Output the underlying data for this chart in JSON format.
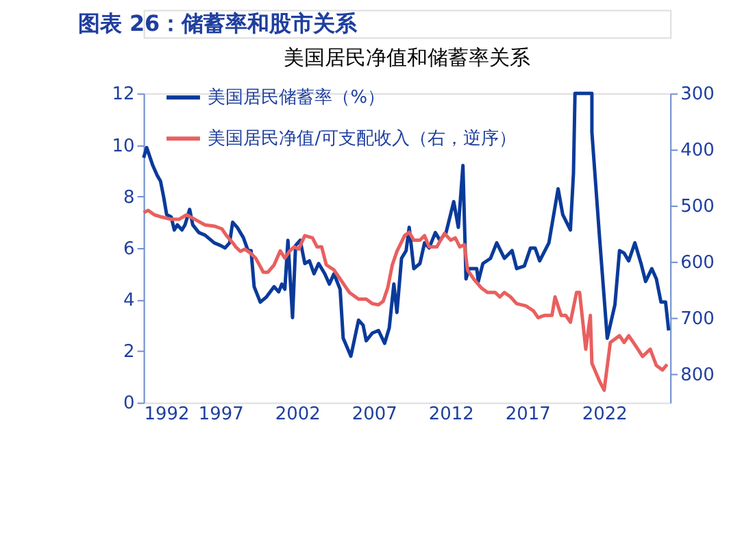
{
  "chart_data": {
    "type": "line",
    "title": "图表 26：储蓄率和股市关系",
    "subtitle": "美国居民净值和储蓄率关系",
    "xlim": [
      1992,
      2026.3
    ],
    "xticks": [
      1992,
      1997,
      2002,
      2007,
      2012,
      2017,
      2022
    ],
    "ylim": [
      0,
      12
    ],
    "yticks": [
      0,
      2,
      4,
      6,
      8,
      10,
      12
    ],
    "y2lim": [
      850,
      300
    ],
    "y2ticks": [
      300,
      400,
      500,
      600,
      700,
      800
    ],
    "legend": "top left",
    "line_style": "solid",
    "series": [
      {
        "name": "美国居民储蓄率（%）",
        "color": "#0a3a9a",
        "x": [
          1992.0,
          1992.2,
          1992.6,
          1992.9,
          1993.1,
          1993.3,
          1993.5,
          1993.8,
          1994.0,
          1994.2,
          1994.5,
          1994.7,
          1995.0,
          1995.2,
          1995.6,
          1996.0,
          1996.6,
          1997.0,
          1997.3,
          1997.6,
          1997.8,
          1998.1,
          1998.5,
          1998.8,
          1999.0,
          1999.2,
          1999.6,
          2000.0,
          2000.5,
          2000.8,
          2001.0,
          2001.2,
          2001.4,
          2001.7,
          2001.9,
          2002.2,
          2002.5,
          2002.8,
          2003.1,
          2003.4,
          2003.8,
          2004.1,
          2004.4,
          2004.8,
          2005.0,
          2005.5,
          2006.0,
          2006.3,
          2006.5,
          2006.9,
          2007.3,
          2007.7,
          2008.0,
          2008.3,
          2008.5,
          2008.8,
          2009.1,
          2009.3,
          2009.6,
          2010.0,
          2010.3,
          2010.6,
          2011.0,
          2011.3,
          2011.7,
          2012.2,
          2012.5,
          2012.8,
          2013.0,
          2013.2,
          2013.7,
          2013.8,
          2014.1,
          2014.6,
          2015.0,
          2015.5,
          2016.0,
          2016.3,
          2016.8,
          2017.2,
          2017.5,
          2017.8,
          2018.4,
          2019.0,
          2019.3,
          2019.8,
          2020.0,
          2020.1,
          2021.2,
          2021.2,
          2021.7,
          2022.2,
          2022.7,
          2023.0,
          2023.3,
          2023.6,
          2024.0,
          2024.4,
          2024.7,
          2025.1,
          2025.4,
          2025.7,
          2026.0,
          2026.2
        ],
        "values": [
          9.5,
          9.9,
          9.2,
          8.8,
          8.6,
          8.0,
          7.3,
          7.2,
          6.7,
          6.9,
          6.7,
          6.9,
          7.5,
          6.9,
          6.6,
          6.5,
          6.2,
          6.1,
          6.0,
          6.2,
          7.0,
          6.8,
          6.4,
          5.9,
          5.9,
          4.5,
          3.9,
          4.1,
          4.5,
          4.3,
          4.6,
          4.4,
          6.3,
          3.3,
          6.1,
          6.3,
          5.4,
          5.5,
          5.0,
          5.4,
          5.0,
          4.6,
          5.0,
          4.4,
          2.5,
          1.8,
          3.2,
          3.0,
          2.4,
          2.7,
          2.8,
          2.3,
          2.9,
          4.6,
          3.5,
          5.6,
          5.9,
          6.8,
          5.2,
          5.4,
          6.2,
          6.0,
          6.6,
          6.3,
          6.6,
          7.8,
          6.8,
          9.2,
          4.8,
          5.2,
          5.2,
          4.7,
          5.4,
          5.6,
          6.2,
          5.6,
          5.9,
          5.2,
          5.3,
          6.0,
          6.0,
          5.5,
          6.2,
          8.3,
          7.3,
          6.7,
          8.9,
          12,
          12,
          10.5,
          6.4,
          2.5,
          3.8,
          5.9,
          5.8,
          5.5,
          6.2,
          5.4,
          4.7,
          5.2,
          4.8,
          3.9,
          3.9,
          2.8
        ]
      },
      {
        "name": "美国居民净值/可支配收入（右，逆序）",
        "color": "#e8605f",
        "axis": "y2",
        "x": [
          1992.0,
          1992.3,
          1992.7,
          1993.2,
          1993.8,
          1994.3,
          1994.8,
          1995.4,
          1996.0,
          1996.6,
          1997.1,
          1997.4,
          1997.9,
          1998.0,
          1998.3,
          1998.6,
          1999.0,
          1999.3,
          1999.8,
          2000.1,
          2000.5,
          2000.9,
          2001.2,
          2001.5,
          2001.8,
          2002.1,
          2002.5,
          2003.0,
          2003.3,
          2003.6,
          2003.9,
          2004.4,
          2004.8,
          2005.4,
          2006.0,
          2006.5,
          2006.9,
          2007.3,
          2007.6,
          2007.9,
          2008.2,
          2008.5,
          2009.0,
          2009.3,
          2009.6,
          2010.0,
          2010.3,
          2010.6,
          2011.1,
          2011.6,
          2012.0,
          2012.3,
          2012.6,
          2012.9,
          2013.1,
          2013.5,
          2014.0,
          2014.4,
          2014.9,
          2015.2,
          2015.5,
          2015.9,
          2016.3,
          2016.9,
          2017.4,
          2017.7,
          2018.1,
          2018.6,
          2018.8,
          2019.2,
          2019.5,
          2019.8,
          2020.2,
          2020.4,
          2020.8,
          2021.1,
          2021.2,
          2021.7,
          2022.0,
          2022.4,
          2023.0,
          2023.3,
          2023.6,
          2024.1,
          2024.5,
          2025.0,
          2025.4,
          2025.8,
          2026.1
        ],
        "values": [
          512,
          508,
          516,
          520,
          524,
          524,
          516,
          525,
          534,
          536,
          541,
          553,
          569,
          573,
          581,
          577,
          585,
          593,
          618,
          618,
          605,
          580,
          593,
          581,
          573,
          577,
          553,
          557,
          573,
          573,
          605,
          614,
          630,
          654,
          666,
          666,
          674,
          676,
          670,
          646,
          605,
          581,
          553,
          547,
          561,
          561,
          553,
          573,
          573,
          549,
          561,
          557,
          573,
          569,
          614,
          630,
          646,
          654,
          654,
          662,
          654,
          662,
          674,
          678,
          687,
          699,
          695,
          695,
          662,
          695,
          695,
          707,
          654,
          654,
          755,
          695,
          780,
          812,
          828,
          743,
          731,
          743,
          731,
          751,
          768,
          755,
          784,
          792,
          782
        ]
      }
    ]
  }
}
